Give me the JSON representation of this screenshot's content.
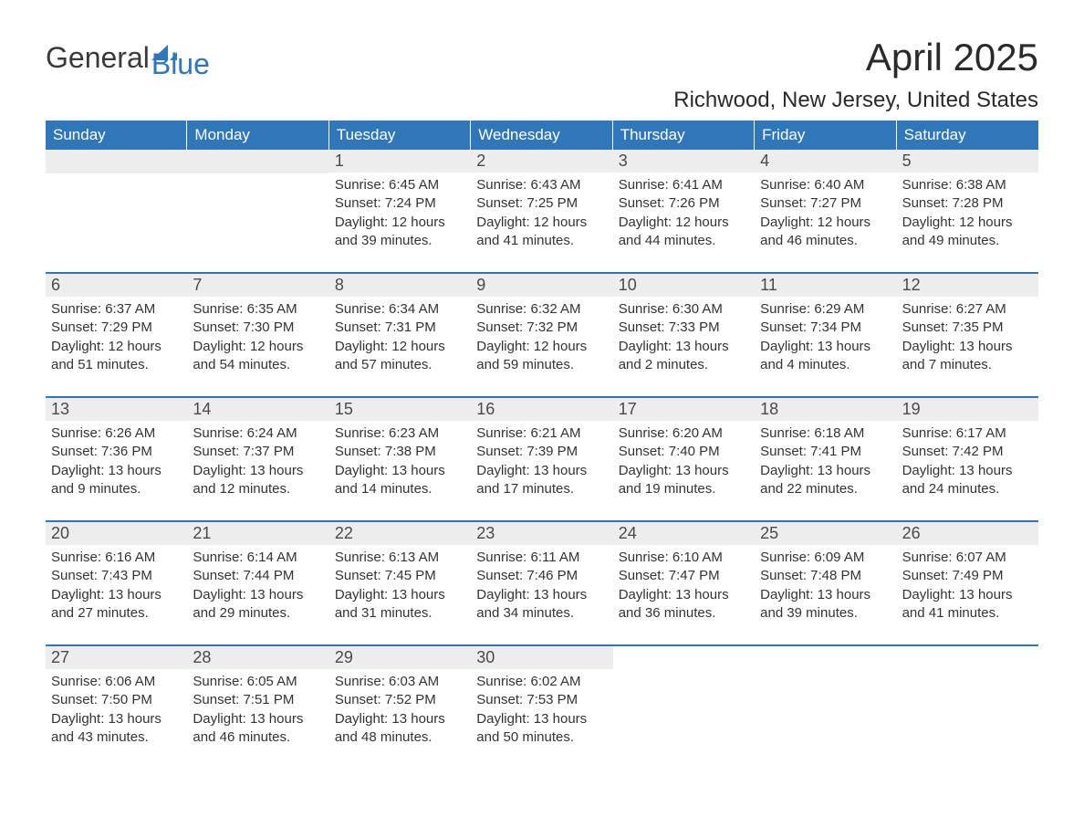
{
  "brand": {
    "name_part1": "General",
    "name_part2": "Blue",
    "accent_color": "#2f77b8",
    "text_color": "#3a3a3a"
  },
  "title": "April 2025",
  "location": "Richwood, New Jersey, United States",
  "colors": {
    "header_bg": "#2f77b8",
    "header_text": "#ffffff",
    "row_border": "#2f77b8",
    "daynum_bg": "#ededed",
    "text": "#333333",
    "background": "#ffffff"
  },
  "typography": {
    "title_fontsize": 42,
    "location_fontsize": 24,
    "header_fontsize": 17,
    "daynum_fontsize": 18,
    "body_fontsize": 15
  },
  "weekdays": [
    "Sunday",
    "Monday",
    "Tuesday",
    "Wednesday",
    "Thursday",
    "Friday",
    "Saturday"
  ],
  "weeks": [
    [
      {
        "day": "",
        "sunrise": "",
        "sunset": "",
        "daylight": ""
      },
      {
        "day": "",
        "sunrise": "",
        "sunset": "",
        "daylight": ""
      },
      {
        "day": "1",
        "sunrise": "Sunrise: 6:45 AM",
        "sunset": "Sunset: 7:24 PM",
        "daylight": "Daylight: 12 hours and 39 minutes."
      },
      {
        "day": "2",
        "sunrise": "Sunrise: 6:43 AM",
        "sunset": "Sunset: 7:25 PM",
        "daylight": "Daylight: 12 hours and 41 minutes."
      },
      {
        "day": "3",
        "sunrise": "Sunrise: 6:41 AM",
        "sunset": "Sunset: 7:26 PM",
        "daylight": "Daylight: 12 hours and 44 minutes."
      },
      {
        "day": "4",
        "sunrise": "Sunrise: 6:40 AM",
        "sunset": "Sunset: 7:27 PM",
        "daylight": "Daylight: 12 hours and 46 minutes."
      },
      {
        "day": "5",
        "sunrise": "Sunrise: 6:38 AM",
        "sunset": "Sunset: 7:28 PM",
        "daylight": "Daylight: 12 hours and 49 minutes."
      }
    ],
    [
      {
        "day": "6",
        "sunrise": "Sunrise: 6:37 AM",
        "sunset": "Sunset: 7:29 PM",
        "daylight": "Daylight: 12 hours and 51 minutes."
      },
      {
        "day": "7",
        "sunrise": "Sunrise: 6:35 AM",
        "sunset": "Sunset: 7:30 PM",
        "daylight": "Daylight: 12 hours and 54 minutes."
      },
      {
        "day": "8",
        "sunrise": "Sunrise: 6:34 AM",
        "sunset": "Sunset: 7:31 PM",
        "daylight": "Daylight: 12 hours and 57 minutes."
      },
      {
        "day": "9",
        "sunrise": "Sunrise: 6:32 AM",
        "sunset": "Sunset: 7:32 PM",
        "daylight": "Daylight: 12 hours and 59 minutes."
      },
      {
        "day": "10",
        "sunrise": "Sunrise: 6:30 AM",
        "sunset": "Sunset: 7:33 PM",
        "daylight": "Daylight: 13 hours and 2 minutes."
      },
      {
        "day": "11",
        "sunrise": "Sunrise: 6:29 AM",
        "sunset": "Sunset: 7:34 PM",
        "daylight": "Daylight: 13 hours and 4 minutes."
      },
      {
        "day": "12",
        "sunrise": "Sunrise: 6:27 AM",
        "sunset": "Sunset: 7:35 PM",
        "daylight": "Daylight: 13 hours and 7 minutes."
      }
    ],
    [
      {
        "day": "13",
        "sunrise": "Sunrise: 6:26 AM",
        "sunset": "Sunset: 7:36 PM",
        "daylight": "Daylight: 13 hours and 9 minutes."
      },
      {
        "day": "14",
        "sunrise": "Sunrise: 6:24 AM",
        "sunset": "Sunset: 7:37 PM",
        "daylight": "Daylight: 13 hours and 12 minutes."
      },
      {
        "day": "15",
        "sunrise": "Sunrise: 6:23 AM",
        "sunset": "Sunset: 7:38 PM",
        "daylight": "Daylight: 13 hours and 14 minutes."
      },
      {
        "day": "16",
        "sunrise": "Sunrise: 6:21 AM",
        "sunset": "Sunset: 7:39 PM",
        "daylight": "Daylight: 13 hours and 17 minutes."
      },
      {
        "day": "17",
        "sunrise": "Sunrise: 6:20 AM",
        "sunset": "Sunset: 7:40 PM",
        "daylight": "Daylight: 13 hours and 19 minutes."
      },
      {
        "day": "18",
        "sunrise": "Sunrise: 6:18 AM",
        "sunset": "Sunset: 7:41 PM",
        "daylight": "Daylight: 13 hours and 22 minutes."
      },
      {
        "day": "19",
        "sunrise": "Sunrise: 6:17 AM",
        "sunset": "Sunset: 7:42 PM",
        "daylight": "Daylight: 13 hours and 24 minutes."
      }
    ],
    [
      {
        "day": "20",
        "sunrise": "Sunrise: 6:16 AM",
        "sunset": "Sunset: 7:43 PM",
        "daylight": "Daylight: 13 hours and 27 minutes."
      },
      {
        "day": "21",
        "sunrise": "Sunrise: 6:14 AM",
        "sunset": "Sunset: 7:44 PM",
        "daylight": "Daylight: 13 hours and 29 minutes."
      },
      {
        "day": "22",
        "sunrise": "Sunrise: 6:13 AM",
        "sunset": "Sunset: 7:45 PM",
        "daylight": "Daylight: 13 hours and 31 minutes."
      },
      {
        "day": "23",
        "sunrise": "Sunrise: 6:11 AM",
        "sunset": "Sunset: 7:46 PM",
        "daylight": "Daylight: 13 hours and 34 minutes."
      },
      {
        "day": "24",
        "sunrise": "Sunrise: 6:10 AM",
        "sunset": "Sunset: 7:47 PM",
        "daylight": "Daylight: 13 hours and 36 minutes."
      },
      {
        "day": "25",
        "sunrise": "Sunrise: 6:09 AM",
        "sunset": "Sunset: 7:48 PM",
        "daylight": "Daylight: 13 hours and 39 minutes."
      },
      {
        "day": "26",
        "sunrise": "Sunrise: 6:07 AM",
        "sunset": "Sunset: 7:49 PM",
        "daylight": "Daylight: 13 hours and 41 minutes."
      }
    ],
    [
      {
        "day": "27",
        "sunrise": "Sunrise: 6:06 AM",
        "sunset": "Sunset: 7:50 PM",
        "daylight": "Daylight: 13 hours and 43 minutes."
      },
      {
        "day": "28",
        "sunrise": "Sunrise: 6:05 AM",
        "sunset": "Sunset: 7:51 PM",
        "daylight": "Daylight: 13 hours and 46 minutes."
      },
      {
        "day": "29",
        "sunrise": "Sunrise: 6:03 AM",
        "sunset": "Sunset: 7:52 PM",
        "daylight": "Daylight: 13 hours and 48 minutes."
      },
      {
        "day": "30",
        "sunrise": "Sunrise: 6:02 AM",
        "sunset": "Sunset: 7:53 PM",
        "daylight": "Daylight: 13 hours and 50 minutes."
      },
      {
        "day": "",
        "sunrise": "",
        "sunset": "",
        "daylight": ""
      },
      {
        "day": "",
        "sunrise": "",
        "sunset": "",
        "daylight": ""
      },
      {
        "day": "",
        "sunrise": "",
        "sunset": "",
        "daylight": ""
      }
    ]
  ]
}
